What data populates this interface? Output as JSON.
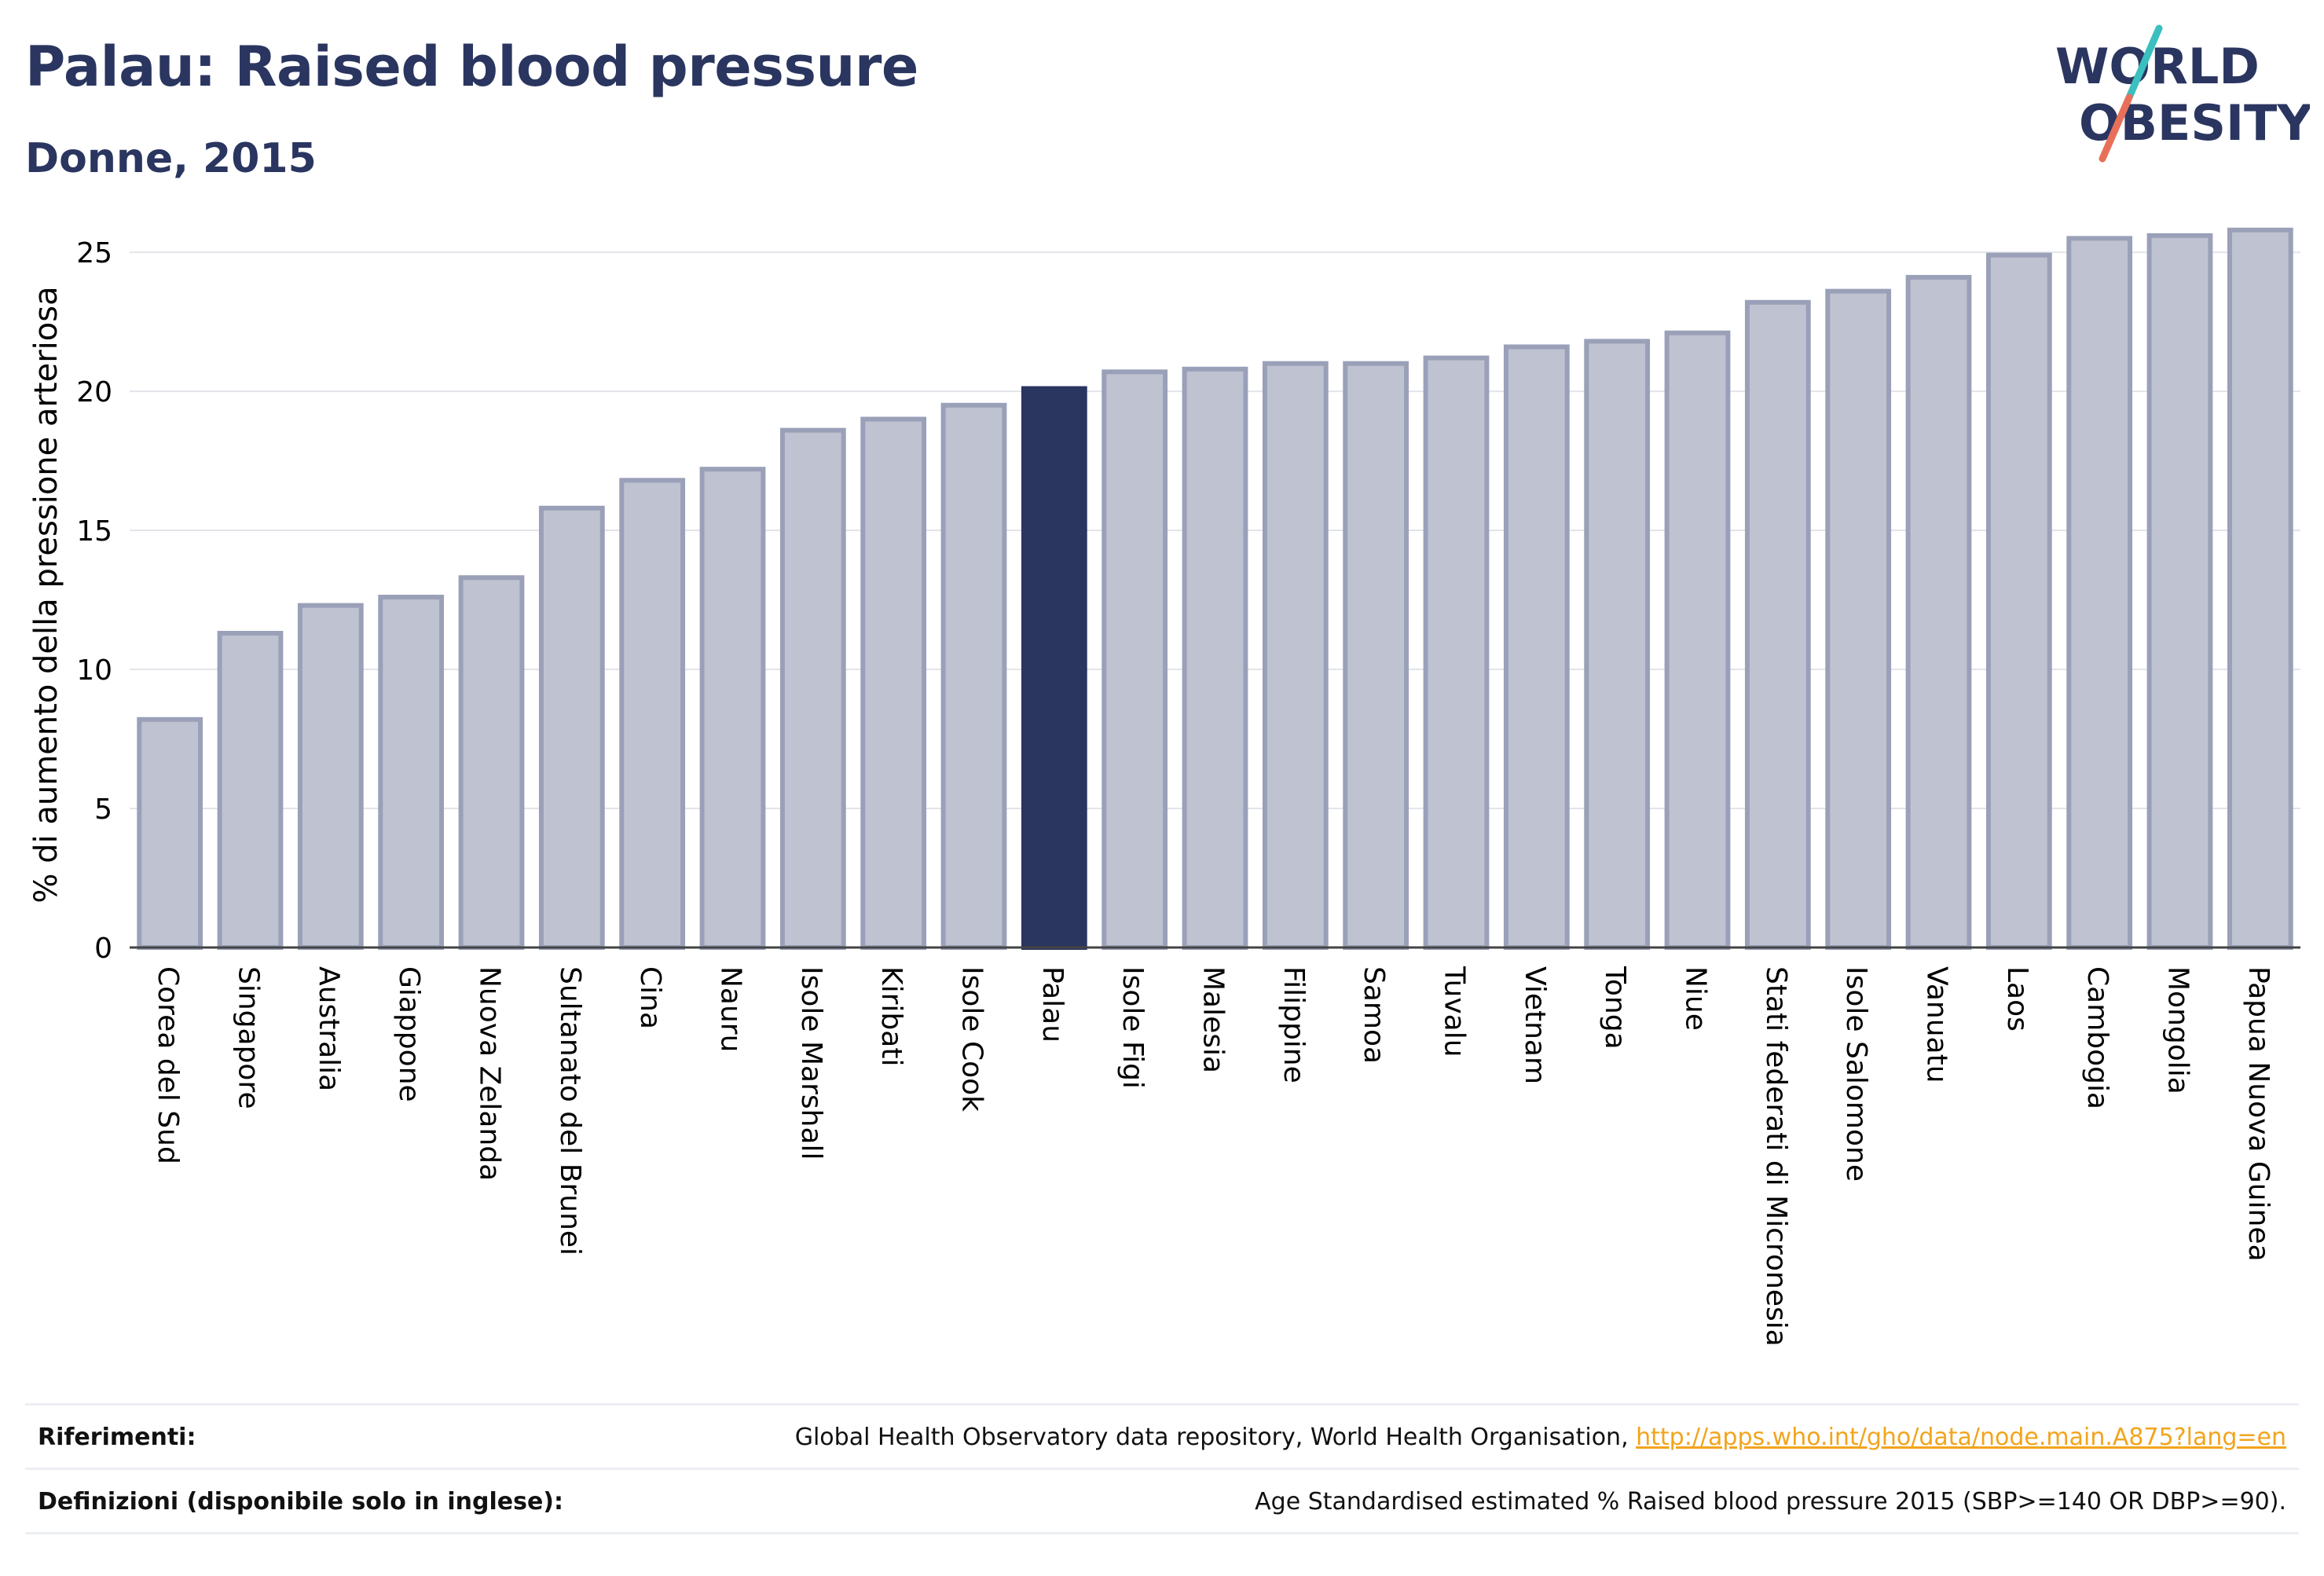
{
  "header": {
    "title": "Palau: Raised blood pressure",
    "subtitle": "Donne, 2015"
  },
  "logo": {
    "line1": "WORLD",
    "line2": "OBESITY"
  },
  "colors": {
    "highlight": "#2a3560",
    "bar_fill": "#bfc2d0",
    "bar_stroke": "#9aa0b8",
    "logo_teal": "#3bbfbf",
    "logo_coral": "#e8705a",
    "link": "#f2a41c"
  },
  "chart_data": {
    "type": "bar",
    "ylabel": "% di aumento della pressione arteriosa",
    "ylim": [
      0,
      26.5
    ],
    "yticks": [
      0,
      5,
      10,
      15,
      20,
      25
    ],
    "grid": true,
    "highlight": "Palau",
    "categories": [
      "Corea del Sud",
      "Singapore",
      "Australia",
      "Giappone",
      "Nuova Zelanda",
      "Sultanato del Brunei",
      "Cina",
      "Nauru",
      "Isole Marshall",
      "Kiribati",
      "Isole Cook",
      "Palau",
      "Isole Figi",
      "Malesia",
      "Filippine",
      "Samoa",
      "Tuvalu",
      "Vietnam",
      "Tonga",
      "Niue",
      "Stati federati di Micronesia",
      "Isole Salomone",
      "Vanuatu",
      "Laos",
      "Cambogia",
      "Mongolia",
      "Papua Nuova Guinea"
    ],
    "values": [
      8.2,
      11.3,
      12.3,
      12.6,
      13.3,
      15.8,
      16.8,
      17.2,
      18.6,
      19.0,
      19.5,
      20.1,
      20.7,
      20.8,
      21.0,
      21.0,
      21.2,
      21.6,
      21.8,
      22.1,
      23.2,
      23.6,
      24.1,
      24.9,
      25.5,
      25.6,
      25.8
    ]
  },
  "footer": {
    "references_label": "Riferimenti:",
    "references_text": "Global Health Observatory data repository, World Health Organisation, ",
    "references_link": "http://apps.who.int/gho/data/node.main.A875?lang=en",
    "definitions_label": "Definizioni (disponibile solo in inglese):",
    "definitions_text": "Age Standardised estimated % Raised blood pressure 2015 (SBP>=140 OR DBP>=90)."
  }
}
